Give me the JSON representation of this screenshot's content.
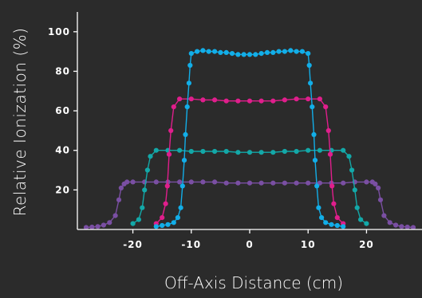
{
  "chart_data": {
    "type": "line",
    "title": "",
    "xlabel": "Off-Axis Distance (cm)",
    "ylabel": "Relative Ionization (%)",
    "xlim": [
      -29.5,
      29.5
    ],
    "ylim": [
      0,
      110
    ],
    "x_ticks": [
      "-20",
      "-10",
      "0",
      "10",
      "20"
    ],
    "x_tick_values": [
      -20,
      -10,
      0,
      10,
      20
    ],
    "y_ticks": [
      "20",
      "40",
      "60",
      "80",
      "100"
    ],
    "y_tick_values": [
      20,
      40,
      60,
      80,
      100
    ],
    "grid": false,
    "legend": "none",
    "series": [
      {
        "color": "#7a4fa3",
        "x": [
          -28,
          -27,
          -26,
          -25,
          -24,
          -23,
          -22.4,
          -22,
          -21.5,
          -21,
          -20,
          -18,
          -16,
          -14,
          -12,
          -10,
          -8,
          -6,
          -4,
          -2,
          0,
          2,
          4,
          6,
          8,
          10,
          12,
          14,
          16,
          18,
          20,
          21,
          21.5,
          22,
          22.4,
          23,
          24,
          25,
          26,
          27,
          28
        ],
        "y": [
          1,
          1.2,
          1.5,
          2.2,
          3.5,
          7,
          15,
          21,
          23,
          24,
          24,
          24,
          24,
          24,
          24,
          24,
          24,
          24,
          23.5,
          23.5,
          23.5,
          23.5,
          23.5,
          23.5,
          23.5,
          23.5,
          23.5,
          23.5,
          23.5,
          24,
          24,
          24,
          23,
          21,
          15,
          7,
          3.5,
          2.2,
          1.5,
          1.2,
          1
        ]
      },
      {
        "color": "#13a8a8",
        "x": [
          -20,
          -19,
          -18.4,
          -18,
          -17.5,
          -17,
          -16,
          -14,
          -12,
          -10,
          -8,
          -6,
          -4,
          -2,
          0,
          2,
          4,
          6,
          8,
          10,
          12,
          14,
          16,
          17,
          17.5,
          18,
          18.4,
          19,
          20
        ],
        "y": [
          3,
          5,
          11,
          20,
          30,
          37,
          40,
          40,
          40,
          39.5,
          39.5,
          39.5,
          39.5,
          39,
          39,
          39,
          39,
          39.5,
          39.5,
          40,
          40,
          40,
          40,
          37,
          30,
          20,
          11,
          5,
          3
        ]
      },
      {
        "color": "#e01e8c",
        "x": [
          -16,
          -15,
          -14.4,
          -14.1,
          -13.8,
          -13.5,
          -13,
          -12,
          -10,
          -8,
          -6,
          -4,
          -2,
          0,
          2,
          4,
          6,
          8,
          10,
          12,
          13,
          13.5,
          13.8,
          14.1,
          14.4,
          15,
          16
        ],
        "y": [
          3,
          6,
          13,
          22,
          38,
          50,
          62,
          66,
          66,
          65.5,
          65.5,
          65,
          65,
          65,
          65,
          65,
          65.5,
          66,
          66,
          66,
          62,
          50,
          38,
          22,
          13,
          6,
          3
        ]
      },
      {
        "color": "#12aee8",
        "x": [
          -16,
          -15,
          -14,
          -13,
          -12.3,
          -11.8,
          -11.5,
          -11.2,
          -11,
          -10.7,
          -10.4,
          -10.2,
          -10,
          -9,
          -8,
          -7,
          -6,
          -5,
          -4,
          -3,
          -2,
          -1,
          0,
          1,
          2,
          3,
          4,
          5,
          6,
          7,
          8,
          9,
          10,
          10.2,
          10.4,
          10.7,
          11,
          11.2,
          11.5,
          11.8,
          12.3,
          13,
          14,
          15,
          16
        ],
        "y": [
          1.5,
          2,
          2.5,
          3.5,
          6,
          11,
          22,
          35,
          48,
          62,
          74,
          83,
          89,
          90,
          90.5,
          90,
          90,
          89.5,
          89.5,
          89,
          88.5,
          88.5,
          88.5,
          88.5,
          89,
          89.5,
          89.5,
          90,
          90,
          90.5,
          90,
          90,
          89,
          83,
          74,
          62,
          48,
          35,
          22,
          11,
          6,
          3.5,
          2.5,
          2,
          1.5
        ]
      }
    ]
  }
}
